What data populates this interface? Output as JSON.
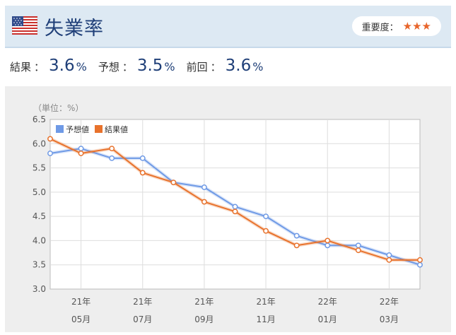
{
  "header": {
    "title": "失業率",
    "flag_icon": "us-flag-icon",
    "importance_label": "重要度：",
    "importance_stars": "★★★"
  },
  "results": {
    "actual_label": "結果",
    "actual_value": "3.6",
    "forecast_label": "予想",
    "forecast_value": "3.5",
    "previous_label": "前回",
    "previous_value": "3.6",
    "unit": "%",
    "colon": "："
  },
  "colors": {
    "forecast": "#6f9ae6",
    "actual": "#e8722c",
    "title": "#1f3f78"
  },
  "chart_data": {
    "type": "line",
    "unit_label": "（単位：%）",
    "ylim": [
      3.0,
      6.5
    ],
    "yticks": [
      "3.0",
      "3.5",
      "4.0",
      "4.5",
      "5.0",
      "5.5",
      "6.0",
      "6.5"
    ],
    "x": [
      "2021-04",
      "2021-05",
      "2021-06",
      "2021-07",
      "2021-08",
      "2021-09",
      "2021-10",
      "2021-11",
      "2021-12",
      "2022-01",
      "2022-02",
      "2022-03",
      "2022-04"
    ],
    "xtick_labels": [
      {
        "year": "21年",
        "month": "05月"
      },
      {
        "year": "21年",
        "month": "07月"
      },
      {
        "year": "21年",
        "month": "09月"
      },
      {
        "year": "21年",
        "month": "11月"
      },
      {
        "year": "22年",
        "month": "01月"
      },
      {
        "year": "22年",
        "month": "03月"
      }
    ],
    "series": [
      {
        "name": "予想値",
        "values": [
          5.8,
          5.9,
          5.7,
          5.7,
          5.2,
          5.1,
          4.7,
          4.5,
          4.1,
          3.9,
          3.9,
          3.7,
          3.5
        ]
      },
      {
        "name": "結果値",
        "values": [
          6.1,
          5.8,
          5.9,
          5.4,
          5.2,
          4.8,
          4.6,
          4.2,
          3.9,
          4.0,
          3.8,
          3.6,
          3.6
        ]
      }
    ],
    "legend_position": "top-left",
    "grid": true
  }
}
